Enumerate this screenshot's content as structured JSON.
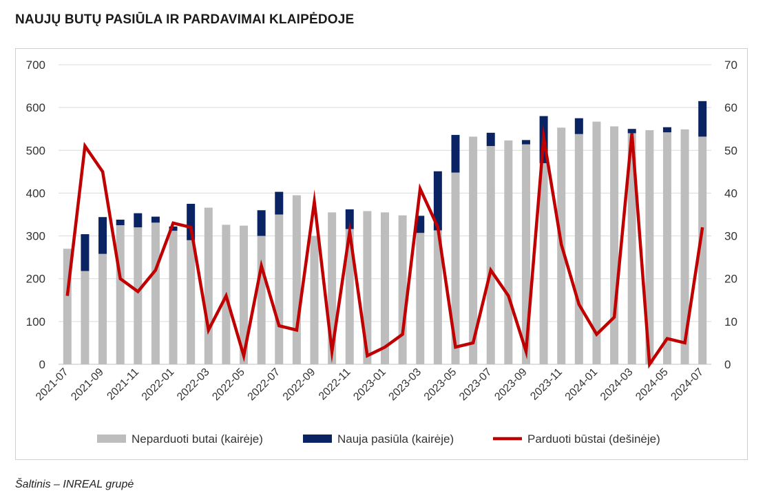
{
  "title": "NAUJŲ BUTŲ PASIŪLA IR PARDAVIMAI KLAIPĖDOJE",
  "source": "Šaltinis – INREAL grupė",
  "colors": {
    "unsold": "#bdbdbd",
    "new_supply": "#0a2463",
    "sold": "#c00000",
    "grid": "#d9d9d9"
  },
  "chart_data": {
    "type": "bar",
    "stacked": true,
    "categories": [
      "2021-07",
      "2021-08",
      "2021-09",
      "2021-10",
      "2021-11",
      "2021-12",
      "2022-01",
      "2022-02",
      "2022-03",
      "2022-04",
      "2022-05",
      "2022-06",
      "2022-07",
      "2022-08",
      "2022-09",
      "2022-10",
      "2022-11",
      "2022-12",
      "2023-01",
      "2023-02",
      "2023-03",
      "2023-04",
      "2023-05",
      "2023-06",
      "2023-07",
      "2023-08",
      "2023-09",
      "2023-10",
      "2023-11",
      "2023-12",
      "2024-01",
      "2024-02",
      "2024-03",
      "2024-04",
      "2024-05",
      "2024-06",
      "2024-07"
    ],
    "x_tick_labels": [
      "2021-07",
      "2021-09",
      "2021-11",
      "2022-01",
      "2022-03",
      "2022-05",
      "2022-07",
      "2022-09",
      "2022-11",
      "2023-01",
      "2023-03",
      "2023-05",
      "2023-07",
      "2023-09",
      "2023-11",
      "2024-01",
      "2024-03",
      "2024-05",
      "2024-07"
    ],
    "series": [
      {
        "name": "Neparduoti butai (kairėje)",
        "type": "bar",
        "axis": "left",
        "values": [
          270,
          218,
          258,
          325,
          320,
          331,
          312,
          290,
          366,
          326,
          324,
          300,
          350,
          395,
          300,
          355,
          316,
          358,
          355,
          348,
          307,
          313,
          448,
          532,
          510,
          523,
          514,
          470,
          553,
          538,
          567,
          556,
          540,
          547,
          542,
          549,
          532
        ]
      },
      {
        "name": "Nauja pasiūla (kairėje)",
        "type": "bar",
        "axis": "left",
        "values": [
          0,
          86,
          86,
          13,
          33,
          14,
          10,
          85,
          0,
          0,
          0,
          60,
          53,
          0,
          0,
          0,
          46,
          0,
          0,
          0,
          40,
          138,
          88,
          0,
          31,
          0,
          10,
          110,
          0,
          37,
          0,
          0,
          10,
          0,
          12,
          0,
          83
        ]
      },
      {
        "name": "Parduoti būstai (dešinėje)",
        "type": "line",
        "axis": "right",
        "values": [
          16,
          51,
          45,
          20,
          17,
          22,
          33,
          32,
          8,
          16,
          2,
          23,
          9,
          8,
          38,
          3,
          31,
          2,
          4,
          7,
          41,
          32,
          4,
          5,
          22,
          16,
          3,
          53,
          28,
          14,
          7,
          11,
          54,
          0,
          6,
          5,
          32
        ]
      }
    ],
    "y_left": {
      "ylim": [
        0,
        700
      ],
      "ticks": [
        0,
        100,
        200,
        300,
        400,
        500,
        600,
        700
      ]
    },
    "y_right": {
      "ylim": [
        0,
        70
      ],
      "ticks": [
        0,
        10,
        20,
        30,
        40,
        50,
        60,
        70
      ]
    },
    "grid": true,
    "legend_position": "bottom"
  }
}
